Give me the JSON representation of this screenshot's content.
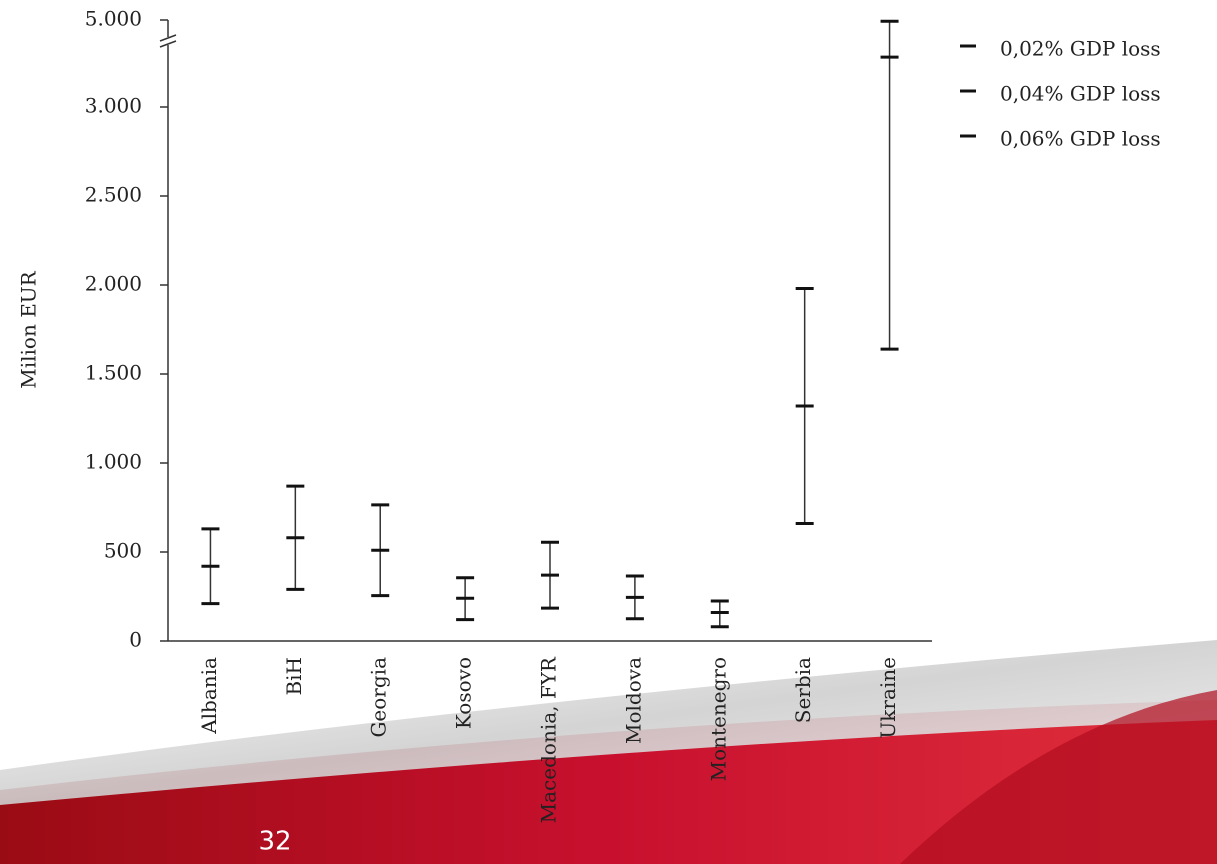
{
  "chart_data": {
    "type": "range",
    "y_label": "Milion EUR",
    "categories": [
      "Albania",
      "BiH",
      "Georgia",
      "Kosovo",
      "Macedonia, FYR",
      "Moldova",
      "Montenegro",
      "Serbia",
      "Ukraine"
    ],
    "series": [
      {
        "name": "0,02% GDP loss",
        "color": "#111111",
        "values": [
          210,
          290,
          255,
          120,
          185,
          125,
          80,
          660,
          1640
        ]
      },
      {
        "name": "0,04% GDP loss",
        "color": "#111111",
        "values": [
          420,
          580,
          510,
          240,
          370,
          245,
          160,
          1320,
          3280
        ]
      },
      {
        "name": "0,06% GDP loss",
        "color": "#111111",
        "values": [
          630,
          870,
          765,
          355,
          555,
          365,
          225,
          1980,
          4920
        ]
      }
    ],
    "ylim": [
      0,
      5000
    ],
    "yticks": [
      0,
      500,
      {
        "value": 1000,
        "label": "1.000"
      },
      {
        "value": 1500,
        "label": "1.500"
      },
      {
        "value": 2000,
        "label": "2.000"
      },
      {
        "value": 2500,
        "label": "2.500"
      },
      {
        "value": 3000,
        "label": "3.000"
      },
      {
        "value": 5000,
        "label": "5.000"
      }
    ],
    "axis_break": true,
    "legend": "top-right"
  },
  "page_number": "32"
}
